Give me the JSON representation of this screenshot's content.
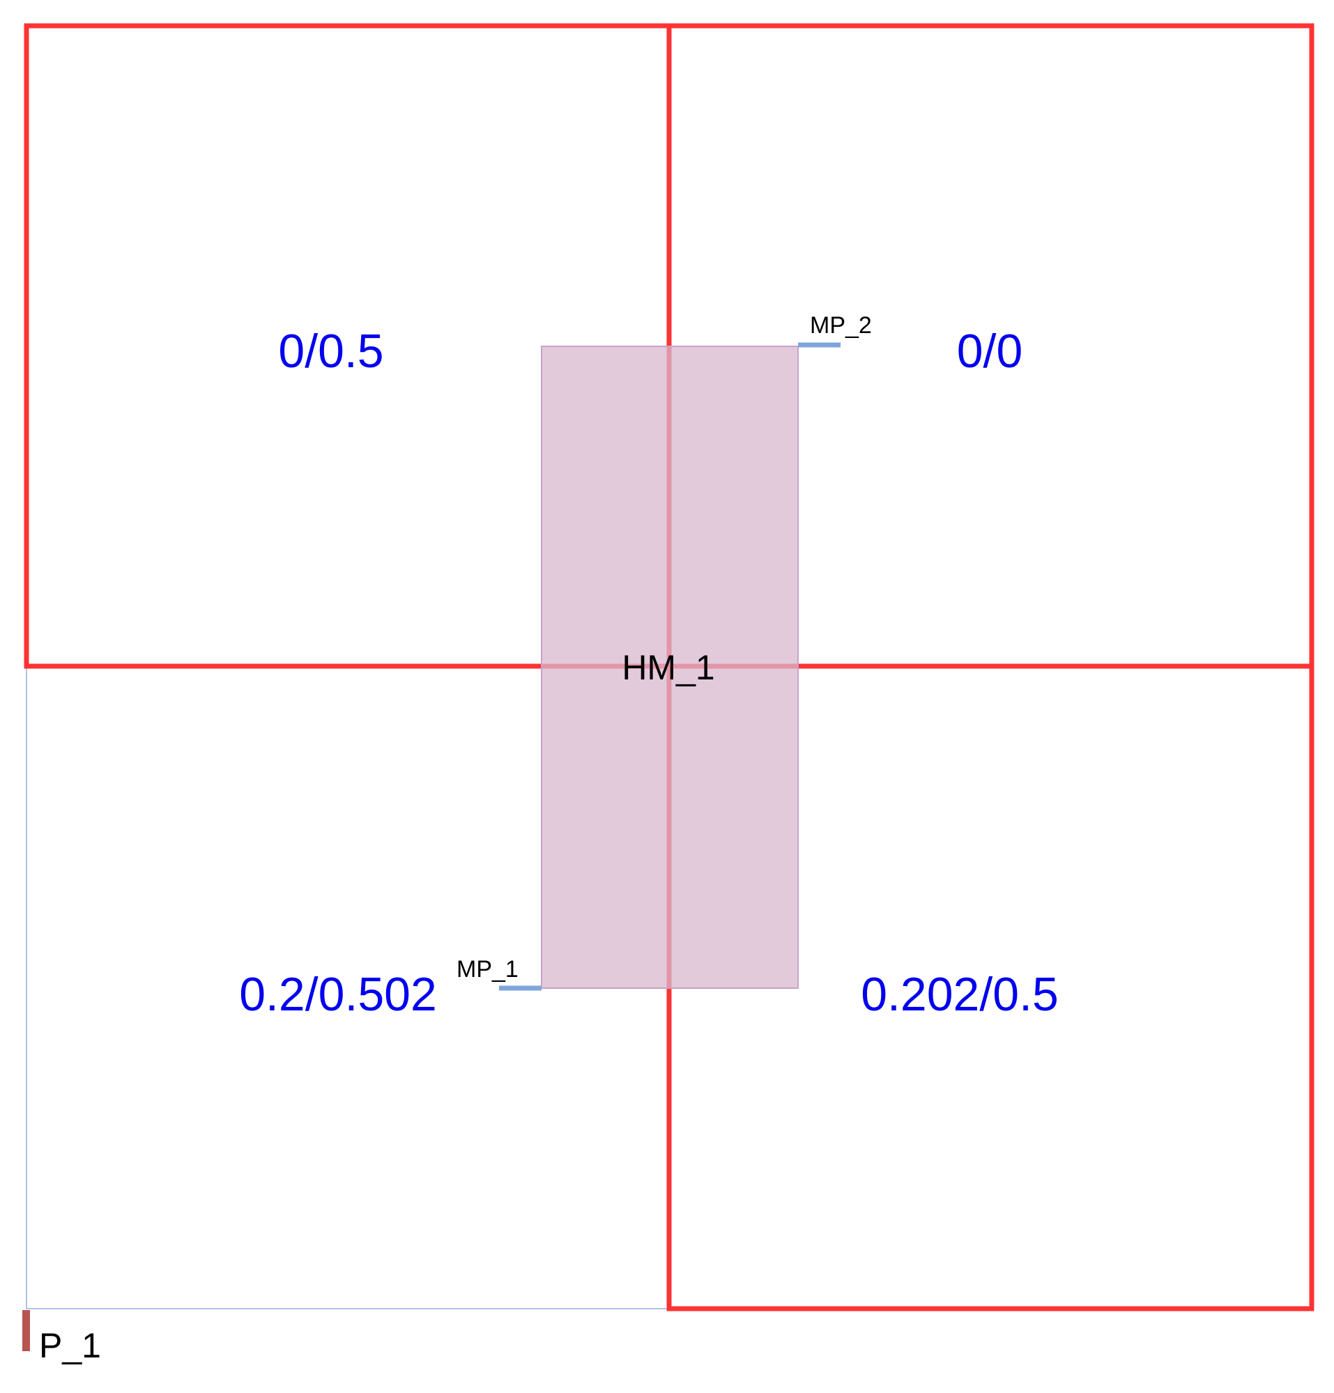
{
  "colors": {
    "region_outline": "#ff3333",
    "boundary": "#b0c4e8",
    "module_fill": "#d8b8cf",
    "module_stroke": "#c7a3c5",
    "pin": "#7fa6dc",
    "port_marker": "#b85450",
    "region_text": "#0000ee",
    "label_text": "#000000"
  },
  "regions": [
    {
      "id": "top-left",
      "label": "0/0.5"
    },
    {
      "id": "top-right",
      "label": "0/0"
    },
    {
      "id": "bottom-left",
      "label": "0.2/0.502"
    },
    {
      "id": "bottom-right",
      "label": "0.202/0.5"
    }
  ],
  "module": {
    "label": "HM_1"
  },
  "pins": [
    {
      "id": "mp1",
      "label": "MP_1"
    },
    {
      "id": "mp2",
      "label": "MP_2"
    }
  ],
  "port": {
    "label": "P_1"
  }
}
